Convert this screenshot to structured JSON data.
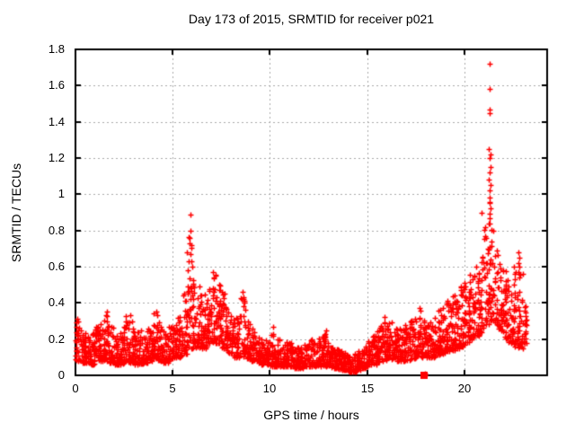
{
  "figure": {
    "background": "#ffffff",
    "title": "Day 173 of 2015, SRMTID for receiver p021",
    "xlabel": "GPS time / hours",
    "ylabel": "SRMTID / TECUs"
  },
  "chart_data": {
    "type": "scatter",
    "title": "Day 173 of 2015, SRMTID for receiver p021",
    "xlabel": "GPS time / hours",
    "ylabel": "SRMTID / TECUs",
    "series_name": "SRMTID",
    "xlim": [
      0,
      24.25
    ],
    "ylim": [
      0,
      1.8
    ],
    "xticks": [
      0,
      5,
      10,
      15,
      20
    ],
    "yticks": [
      0,
      0.2,
      0.4,
      0.6,
      0.8,
      1,
      1.2,
      1.4,
      1.6,
      1.8
    ],
    "grid": {
      "visible": true,
      "style": "dotted",
      "color": "#a8a8a8"
    },
    "marker": {
      "shape": "plus",
      "color": "#ff0000",
      "size": 7
    },
    "frame_color": "#000000",
    "seed": 20150173,
    "band_bins_format": [
      "t_start_h",
      "t_end_h",
      "value_min_TECU",
      "value_max_TECU",
      "n_points"
    ],
    "band_bins": [
      [
        0.0,
        0.25,
        0.08,
        0.3,
        30
      ],
      [
        0.25,
        0.5,
        0.07,
        0.26,
        30
      ],
      [
        0.5,
        0.75,
        0.06,
        0.22,
        30
      ],
      [
        0.75,
        1.0,
        0.06,
        0.24,
        30
      ],
      [
        1.0,
        1.25,
        0.07,
        0.27,
        30
      ],
      [
        1.25,
        1.5,
        0.08,
        0.31,
        30
      ],
      [
        1.5,
        1.75,
        0.08,
        0.35,
        30
      ],
      [
        1.75,
        2.0,
        0.07,
        0.27,
        30
      ],
      [
        2.0,
        2.25,
        0.06,
        0.24,
        30
      ],
      [
        2.25,
        2.5,
        0.06,
        0.27,
        30
      ],
      [
        2.5,
        2.75,
        0.07,
        0.33,
        30
      ],
      [
        2.75,
        3.0,
        0.07,
        0.3,
        30
      ],
      [
        3.0,
        3.25,
        0.06,
        0.24,
        30
      ],
      [
        3.25,
        3.5,
        0.06,
        0.25,
        30
      ],
      [
        3.5,
        3.75,
        0.07,
        0.29,
        30
      ],
      [
        3.75,
        4.0,
        0.08,
        0.32,
        30
      ],
      [
        4.0,
        4.25,
        0.09,
        0.35,
        30
      ],
      [
        4.25,
        4.5,
        0.08,
        0.3,
        30
      ],
      [
        4.5,
        4.75,
        0.07,
        0.26,
        30
      ],
      [
        4.75,
        5.0,
        0.08,
        0.28,
        30
      ],
      [
        5.0,
        5.25,
        0.1,
        0.3,
        30
      ],
      [
        5.25,
        5.5,
        0.1,
        0.33,
        30
      ],
      [
        5.5,
        5.75,
        0.12,
        0.45,
        30
      ],
      [
        5.75,
        6.0,
        0.15,
        0.78,
        32
      ],
      [
        6.0,
        6.25,
        0.15,
        0.6,
        30
      ],
      [
        6.25,
        6.5,
        0.15,
        0.5,
        30
      ],
      [
        6.5,
        6.75,
        0.15,
        0.45,
        30
      ],
      [
        6.75,
        7.0,
        0.18,
        0.5,
        30
      ],
      [
        7.0,
        7.25,
        0.18,
        0.56,
        30
      ],
      [
        7.25,
        7.5,
        0.18,
        0.5,
        30
      ],
      [
        7.5,
        7.75,
        0.15,
        0.47,
        30
      ],
      [
        7.75,
        8.0,
        0.12,
        0.38,
        30
      ],
      [
        8.0,
        8.25,
        0.1,
        0.32,
        30
      ],
      [
        8.25,
        8.5,
        0.1,
        0.35,
        30
      ],
      [
        8.5,
        8.75,
        0.1,
        0.44,
        30
      ],
      [
        8.75,
        9.0,
        0.09,
        0.3,
        30
      ],
      [
        9.0,
        9.25,
        0.08,
        0.26,
        30
      ],
      [
        9.25,
        9.5,
        0.07,
        0.22,
        30
      ],
      [
        9.5,
        9.75,
        0.06,
        0.2,
        30
      ],
      [
        9.75,
        10.0,
        0.06,
        0.2,
        30
      ],
      [
        10.0,
        10.25,
        0.05,
        0.24,
        30
      ],
      [
        10.25,
        10.5,
        0.05,
        0.2,
        30
      ],
      [
        10.5,
        10.75,
        0.05,
        0.18,
        30
      ],
      [
        10.75,
        11.0,
        0.05,
        0.19,
        30
      ],
      [
        11.0,
        11.25,
        0.05,
        0.18,
        30
      ],
      [
        11.25,
        11.5,
        0.04,
        0.17,
        30
      ],
      [
        11.5,
        11.75,
        0.04,
        0.16,
        30
      ],
      [
        11.75,
        12.0,
        0.05,
        0.18,
        30
      ],
      [
        12.0,
        12.25,
        0.05,
        0.2,
        30
      ],
      [
        12.25,
        12.5,
        0.05,
        0.18,
        30
      ],
      [
        12.5,
        12.75,
        0.05,
        0.22,
        30
      ],
      [
        12.75,
        13.0,
        0.05,
        0.24,
        30
      ],
      [
        13.0,
        13.25,
        0.04,
        0.16,
        30
      ],
      [
        13.25,
        13.5,
        0.04,
        0.15,
        30
      ],
      [
        13.5,
        13.75,
        0.03,
        0.14,
        30
      ],
      [
        13.75,
        14.0,
        0.03,
        0.13,
        30
      ],
      [
        14.0,
        14.25,
        0.02,
        0.11,
        30
      ],
      [
        14.25,
        14.5,
        0.02,
        0.12,
        30
      ],
      [
        14.5,
        14.75,
        0.03,
        0.14,
        30
      ],
      [
        14.75,
        15.0,
        0.04,
        0.16,
        30
      ],
      [
        15.0,
        15.25,
        0.05,
        0.19,
        30
      ],
      [
        15.25,
        15.5,
        0.06,
        0.23,
        30
      ],
      [
        15.5,
        15.75,
        0.07,
        0.28,
        30
      ],
      [
        15.75,
        16.0,
        0.08,
        0.31,
        30
      ],
      [
        16.0,
        16.25,
        0.09,
        0.3,
        30
      ],
      [
        16.25,
        16.5,
        0.09,
        0.28,
        30
      ],
      [
        16.5,
        16.75,
        0.08,
        0.27,
        30
      ],
      [
        16.75,
        17.0,
        0.08,
        0.28,
        28
      ],
      [
        17.0,
        17.25,
        0.08,
        0.3,
        28
      ],
      [
        17.25,
        17.5,
        0.09,
        0.33,
        28
      ],
      [
        17.5,
        17.75,
        0.1,
        0.36,
        28
      ],
      [
        17.75,
        18.0,
        0.1,
        0.34,
        26
      ],
      [
        18.0,
        18.25,
        0.1,
        0.3,
        28
      ],
      [
        18.25,
        18.5,
        0.1,
        0.33,
        28
      ],
      [
        18.5,
        18.75,
        0.11,
        0.36,
        30
      ],
      [
        18.75,
        19.0,
        0.12,
        0.38,
        30
      ],
      [
        19.0,
        19.25,
        0.13,
        0.43,
        30
      ],
      [
        19.25,
        19.5,
        0.14,
        0.45,
        30
      ],
      [
        19.5,
        19.75,
        0.15,
        0.48,
        30
      ],
      [
        19.75,
        20.0,
        0.16,
        0.5,
        30
      ],
      [
        20.0,
        20.25,
        0.18,
        0.52,
        30
      ],
      [
        20.25,
        20.5,
        0.2,
        0.56,
        30
      ],
      [
        20.5,
        20.75,
        0.22,
        0.6,
        30
      ],
      [
        20.75,
        21.0,
        0.24,
        0.66,
        30
      ],
      [
        21.0,
        21.25,
        0.28,
        0.85,
        32
      ],
      [
        21.25,
        21.5,
        0.3,
        1.0,
        34
      ],
      [
        21.5,
        21.75,
        0.28,
        0.7,
        30
      ],
      [
        21.75,
        22.0,
        0.24,
        0.62,
        30
      ],
      [
        22.0,
        22.25,
        0.2,
        0.58,
        30
      ],
      [
        22.25,
        22.5,
        0.18,
        0.5,
        28
      ],
      [
        22.5,
        22.75,
        0.16,
        0.6,
        30
      ],
      [
        22.75,
        23.0,
        0.15,
        0.65,
        32
      ],
      [
        23.0,
        23.2,
        0.18,
        0.4,
        18
      ]
    ],
    "outliers_format": [
      "t_h",
      "value_TECU"
    ],
    "outliers": [
      [
        0.1,
        0.31
      ],
      [
        1.62,
        0.35
      ],
      [
        1.58,
        0.33
      ],
      [
        2.8,
        0.33
      ],
      [
        4.15,
        0.35
      ],
      [
        4.2,
        0.33
      ],
      [
        5.9,
        0.89
      ],
      [
        5.92,
        0.8
      ],
      [
        5.88,
        0.76
      ],
      [
        5.95,
        0.72
      ],
      [
        5.91,
        0.67
      ],
      [
        5.97,
        0.63
      ],
      [
        6.02,
        0.6
      ],
      [
        7.05,
        0.57
      ],
      [
        7.1,
        0.54
      ],
      [
        7.4,
        0.5
      ],
      [
        7.45,
        0.47
      ],
      [
        8.6,
        0.46
      ],
      [
        8.63,
        0.43
      ],
      [
        10.15,
        0.27
      ],
      [
        12.9,
        0.25
      ],
      [
        15.9,
        0.32
      ],
      [
        17.7,
        0.37
      ],
      [
        20.9,
        0.9
      ],
      [
        21.28,
        1.72
      ],
      [
        21.3,
        1.58
      ],
      [
        21.29,
        1.47
      ],
      [
        21.31,
        1.45
      ],
      [
        21.27,
        1.25
      ],
      [
        21.33,
        1.22
      ],
      [
        21.3,
        1.2
      ],
      [
        21.32,
        1.15
      ],
      [
        21.29,
        1.12
      ],
      [
        21.27,
        1.08
      ],
      [
        21.33,
        1.05
      ],
      [
        21.3,
        1.02
      ],
      [
        21.31,
        0.98
      ],
      [
        21.28,
        0.95
      ],
      [
        21.32,
        0.92
      ],
      [
        22.78,
        0.68
      ],
      [
        22.8,
        0.65
      ],
      [
        22.75,
        0.62
      ],
      [
        22.82,
        0.6
      ],
      [
        23.15,
        0.38
      ]
    ],
    "zero_cluster": {
      "t": 17.93,
      "value": 0.0,
      "n": 8
    }
  }
}
